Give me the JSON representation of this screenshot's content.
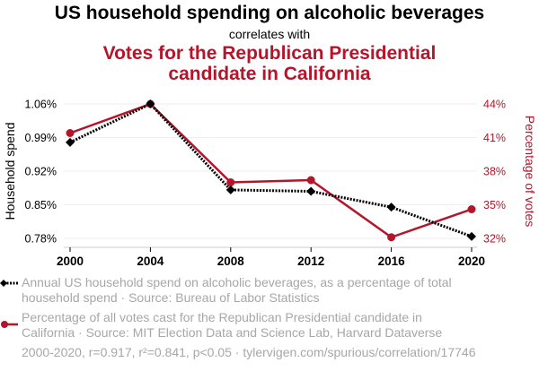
{
  "chart_data": {
    "type": "line",
    "title": "US household spending on alcoholic beverages",
    "subtitle_connector": "correlates with",
    "title2": "Votes for the Republican Presidential candidate in California",
    "x": [
      2000,
      2004,
      2008,
      2012,
      2016,
      2020
    ],
    "x_tick_labels": [
      "2000",
      "2004",
      "2008",
      "2012",
      "2016",
      "2020"
    ],
    "series": [
      {
        "name": "Annual US household spend on alcoholic beverages, as a percentage of total household spend",
        "axis": "left",
        "color": "#000000",
        "style": "dotted",
        "marker": "diamond",
        "values": [
          0.98,
          1.06,
          0.881,
          0.878,
          0.845,
          0.784
        ]
      },
      {
        "name": "Percentage of all votes cast for the Republican Presidential candidate in California",
        "axis": "right",
        "color": "#b5152b",
        "style": "solid",
        "marker": "circle",
        "values": [
          41.4,
          44.0,
          37.0,
          37.2,
          32.1,
          34.6
        ]
      }
    ],
    "left_axis": {
      "label": "Household spend",
      "ylim": [
        0.78,
        1.06
      ],
      "ticks": [
        1.06,
        0.99,
        0.92,
        0.85,
        0.78
      ],
      "tick_labels": [
        "1.06%",
        "0.99%",
        "0.92%",
        "0.85%",
        "0.78%"
      ]
    },
    "right_axis": {
      "label": "Percentage of votes",
      "ylim": [
        32,
        44
      ],
      "ticks": [
        44,
        41,
        38,
        35,
        32
      ],
      "tick_labels": [
        "44%",
        "41%",
        "38%",
        "35%",
        "32%"
      ],
      "color": "#b5152b"
    },
    "grid": true,
    "legend_position": "bottom"
  },
  "legend": {
    "item1_line1": "Annual US household spend on alcoholic beverages, as a percentage of total",
    "item1_line2": "household spend · Source: Bureau of Labor Statistics",
    "item2_line1": "Percentage of all votes cast for the Republican Presidential candidate in",
    "item2_line2": "California · Source: MIT Election Data and Science Lab, Harvard Dataverse"
  },
  "footer": "2000-2020, r=0.917, r²=0.841, p<0.05 · tylervigen.com/spurious/correlation/17746"
}
